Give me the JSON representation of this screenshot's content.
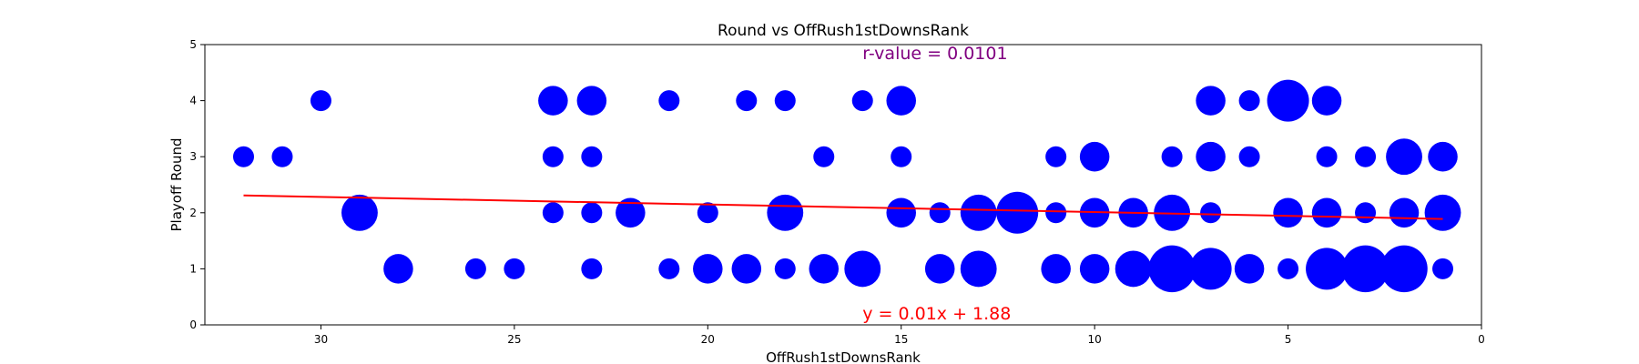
{
  "chart_data": {
    "type": "scatter",
    "title": "Round vs OffRush1stDownsRank",
    "xlabel": "OffRush1stDownsRank",
    "ylabel": "Playoff Round",
    "xlim": [
      33,
      0
    ],
    "ylim": [
      0,
      5
    ],
    "x_ticks": [
      30,
      25,
      20,
      15,
      10,
      5,
      0
    ],
    "y_ticks": [
      0,
      1,
      2,
      3,
      4,
      5
    ],
    "marker_color": "#0000ff",
    "points": [
      {
        "x": 32,
        "y": 3,
        "count": 1
      },
      {
        "x": 31,
        "y": 3,
        "count": 1
      },
      {
        "x": 30,
        "y": 4,
        "count": 1
      },
      {
        "x": 29,
        "y": 2,
        "count": 3
      },
      {
        "x": 28,
        "y": 1,
        "count": 2
      },
      {
        "x": 26,
        "y": 1,
        "count": 1
      },
      {
        "x": 25,
        "y": 1,
        "count": 1
      },
      {
        "x": 24,
        "y": 4,
        "count": 2
      },
      {
        "x": 24,
        "y": 3,
        "count": 1
      },
      {
        "x": 24,
        "y": 2,
        "count": 1
      },
      {
        "x": 23,
        "y": 4,
        "count": 2
      },
      {
        "x": 23,
        "y": 3,
        "count": 1
      },
      {
        "x": 23,
        "y": 2,
        "count": 1
      },
      {
        "x": 23,
        "y": 1,
        "count": 1
      },
      {
        "x": 22,
        "y": 2,
        "count": 2
      },
      {
        "x": 21,
        "y": 4,
        "count": 1
      },
      {
        "x": 21,
        "y": 1,
        "count": 1
      },
      {
        "x": 20,
        "y": 2,
        "count": 1
      },
      {
        "x": 20,
        "y": 1,
        "count": 2
      },
      {
        "x": 19,
        "y": 4,
        "count": 1
      },
      {
        "x": 19,
        "y": 1,
        "count": 2
      },
      {
        "x": 18,
        "y": 4,
        "count": 1
      },
      {
        "x": 18,
        "y": 2,
        "count": 3
      },
      {
        "x": 18,
        "y": 1,
        "count": 1
      },
      {
        "x": 17,
        "y": 3,
        "count": 1
      },
      {
        "x": 17,
        "y": 1,
        "count": 2
      },
      {
        "x": 16,
        "y": 4,
        "count": 1
      },
      {
        "x": 16,
        "y": 1,
        "count": 3
      },
      {
        "x": 15,
        "y": 4,
        "count": 2
      },
      {
        "x": 15,
        "y": 3,
        "count": 1
      },
      {
        "x": 15,
        "y": 2,
        "count": 2
      },
      {
        "x": 14,
        "y": 2,
        "count": 1
      },
      {
        "x": 14,
        "y": 1,
        "count": 2
      },
      {
        "x": 13,
        "y": 2,
        "count": 3
      },
      {
        "x": 13,
        "y": 1,
        "count": 3
      },
      {
        "x": 12,
        "y": 2,
        "count": 4
      },
      {
        "x": 11,
        "y": 3,
        "count": 1
      },
      {
        "x": 11,
        "y": 2,
        "count": 1
      },
      {
        "x": 11,
        "y": 1,
        "count": 2
      },
      {
        "x": 10,
        "y": 3,
        "count": 2
      },
      {
        "x": 10,
        "y": 2,
        "count": 2
      },
      {
        "x": 10,
        "y": 1,
        "count": 2
      },
      {
        "x": 9,
        "y": 2,
        "count": 2
      },
      {
        "x": 9,
        "y": 1,
        "count": 3
      },
      {
        "x": 8,
        "y": 3,
        "count": 1
      },
      {
        "x": 8,
        "y": 2,
        "count": 3
      },
      {
        "x": 8,
        "y": 1,
        "count": 5
      },
      {
        "x": 7,
        "y": 4,
        "count": 2
      },
      {
        "x": 7,
        "y": 3,
        "count": 2
      },
      {
        "x": 7,
        "y": 2,
        "count": 1
      },
      {
        "x": 7,
        "y": 1,
        "count": 4
      },
      {
        "x": 6,
        "y": 4,
        "count": 1
      },
      {
        "x": 6,
        "y": 3,
        "count": 1
      },
      {
        "x": 6,
        "y": 1,
        "count": 2
      },
      {
        "x": 5,
        "y": 4,
        "count": 4
      },
      {
        "x": 5,
        "y": 2,
        "count": 2
      },
      {
        "x": 5,
        "y": 1,
        "count": 1
      },
      {
        "x": 4,
        "y": 4,
        "count": 2
      },
      {
        "x": 4,
        "y": 3,
        "count": 1
      },
      {
        "x": 4,
        "y": 2,
        "count": 2
      },
      {
        "x": 4,
        "y": 1,
        "count": 4
      },
      {
        "x": 3,
        "y": 3,
        "count": 1
      },
      {
        "x": 3,
        "y": 2,
        "count": 1
      },
      {
        "x": 3,
        "y": 1,
        "count": 5
      },
      {
        "x": 2,
        "y": 3,
        "count": 3
      },
      {
        "x": 2,
        "y": 2,
        "count": 2
      },
      {
        "x": 2,
        "y": 1,
        "count": 5
      },
      {
        "x": 1,
        "y": 3,
        "count": 2
      },
      {
        "x": 1,
        "y": 2,
        "count": 3
      },
      {
        "x": 1,
        "y": 1,
        "count": 1
      }
    ],
    "regression": {
      "color": "#ff0000",
      "x_range": [
        32,
        1
      ],
      "y_at_start": 2.31,
      "y_at_end": 1.89,
      "equation_label": "y = 0.01x + 1.88"
    },
    "r_value_label": "r-value = 0.0101",
    "r_value_color": "#800080",
    "grid": false,
    "legend": "none"
  }
}
